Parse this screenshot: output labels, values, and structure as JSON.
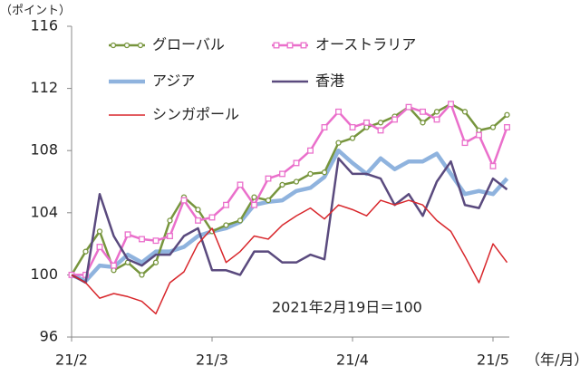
{
  "chart_data": {
    "type": "line",
    "y_unit_label": "（ポイント）",
    "x_unit_label": "（年/月）",
    "annotation": "2021年2月19日＝100",
    "categories": [
      "21/2",
      null,
      null,
      null,
      null,
      null,
      null,
      null,
      null,
      null,
      "21/3",
      null,
      null,
      null,
      null,
      null,
      null,
      null,
      null,
      null,
      "21/4",
      null,
      null,
      null,
      null,
      null,
      null,
      null,
      null,
      null,
      "21/5",
      null
    ],
    "ylim": [
      96,
      116
    ],
    "yticks": [
      96,
      100,
      104,
      108,
      112,
      116
    ],
    "series": [
      {
        "name": "グローバル",
        "color": "#77953d",
        "marker": "circle",
        "values": [
          100,
          101.5,
          102.8,
          100.3,
          100.8,
          100,
          100.8,
          103.5,
          105,
          104.2,
          102.8,
          103.2,
          103.5,
          105,
          104.8,
          105.8,
          106,
          106.5,
          106.6,
          108.5,
          108.8,
          109.5,
          109.8,
          110.2,
          110.8,
          109.8,
          110.5,
          111,
          110.5,
          109.3,
          109.5,
          110.3
        ]
      },
      {
        "name": "オーストラリア",
        "color": "#ea6fcb",
        "marker": "square",
        "values": [
          100,
          100,
          101.8,
          100.6,
          102.6,
          102.3,
          102.2,
          102.5,
          104.8,
          103.5,
          103.7,
          104.5,
          105.8,
          104.5,
          106.2,
          106.5,
          107.2,
          108,
          109.5,
          110.5,
          109.5,
          109.8,
          109.3,
          110,
          110.8,
          110.5,
          110,
          111,
          108.5,
          109,
          107,
          109.5
        ]
      },
      {
        "name": "アジア",
        "color": "#8fb3de",
        "width": 4.5,
        "values": [
          100,
          99.6,
          100.6,
          100.5,
          101.3,
          100.8,
          101.5,
          101.5,
          101.8,
          102.5,
          102.8,
          103,
          103.4,
          104.5,
          104.7,
          104.8,
          105.4,
          105.6,
          106.3,
          108,
          107.2,
          106.5,
          107.5,
          106.8,
          107.3,
          107.3,
          107.8,
          106.5,
          105.2,
          105.4,
          105.2,
          106.2
        ]
      },
      {
        "name": "香港",
        "color": "#5a4a7e",
        "width": 2.5,
        "values": [
          100,
          99.5,
          105.2,
          102.5,
          101,
          100.6,
          101.3,
          101.3,
          102.5,
          103,
          100.3,
          100.3,
          100,
          101.5,
          101.5,
          100.8,
          100.8,
          101.3,
          101,
          107.5,
          106.5,
          106.5,
          106.2,
          104.5,
          105.2,
          103.8,
          106,
          107.3,
          104.5,
          104.3,
          106.2,
          105.5
        ]
      },
      {
        "name": "シンガポール",
        "color": "#d8262b",
        "width": 1.5,
        "values": [
          100,
          99.5,
          98.5,
          98.8,
          98.6,
          98.3,
          97.5,
          99.5,
          100.2,
          102,
          103,
          100.8,
          101.5,
          102.5,
          102.3,
          103.2,
          103.8,
          104.3,
          103.6,
          104.5,
          104.2,
          103.8,
          104.8,
          104.5,
          104.8,
          104.5,
          103.5,
          102.8,
          101.2,
          99.5,
          102,
          100.8
        ]
      }
    ]
  }
}
